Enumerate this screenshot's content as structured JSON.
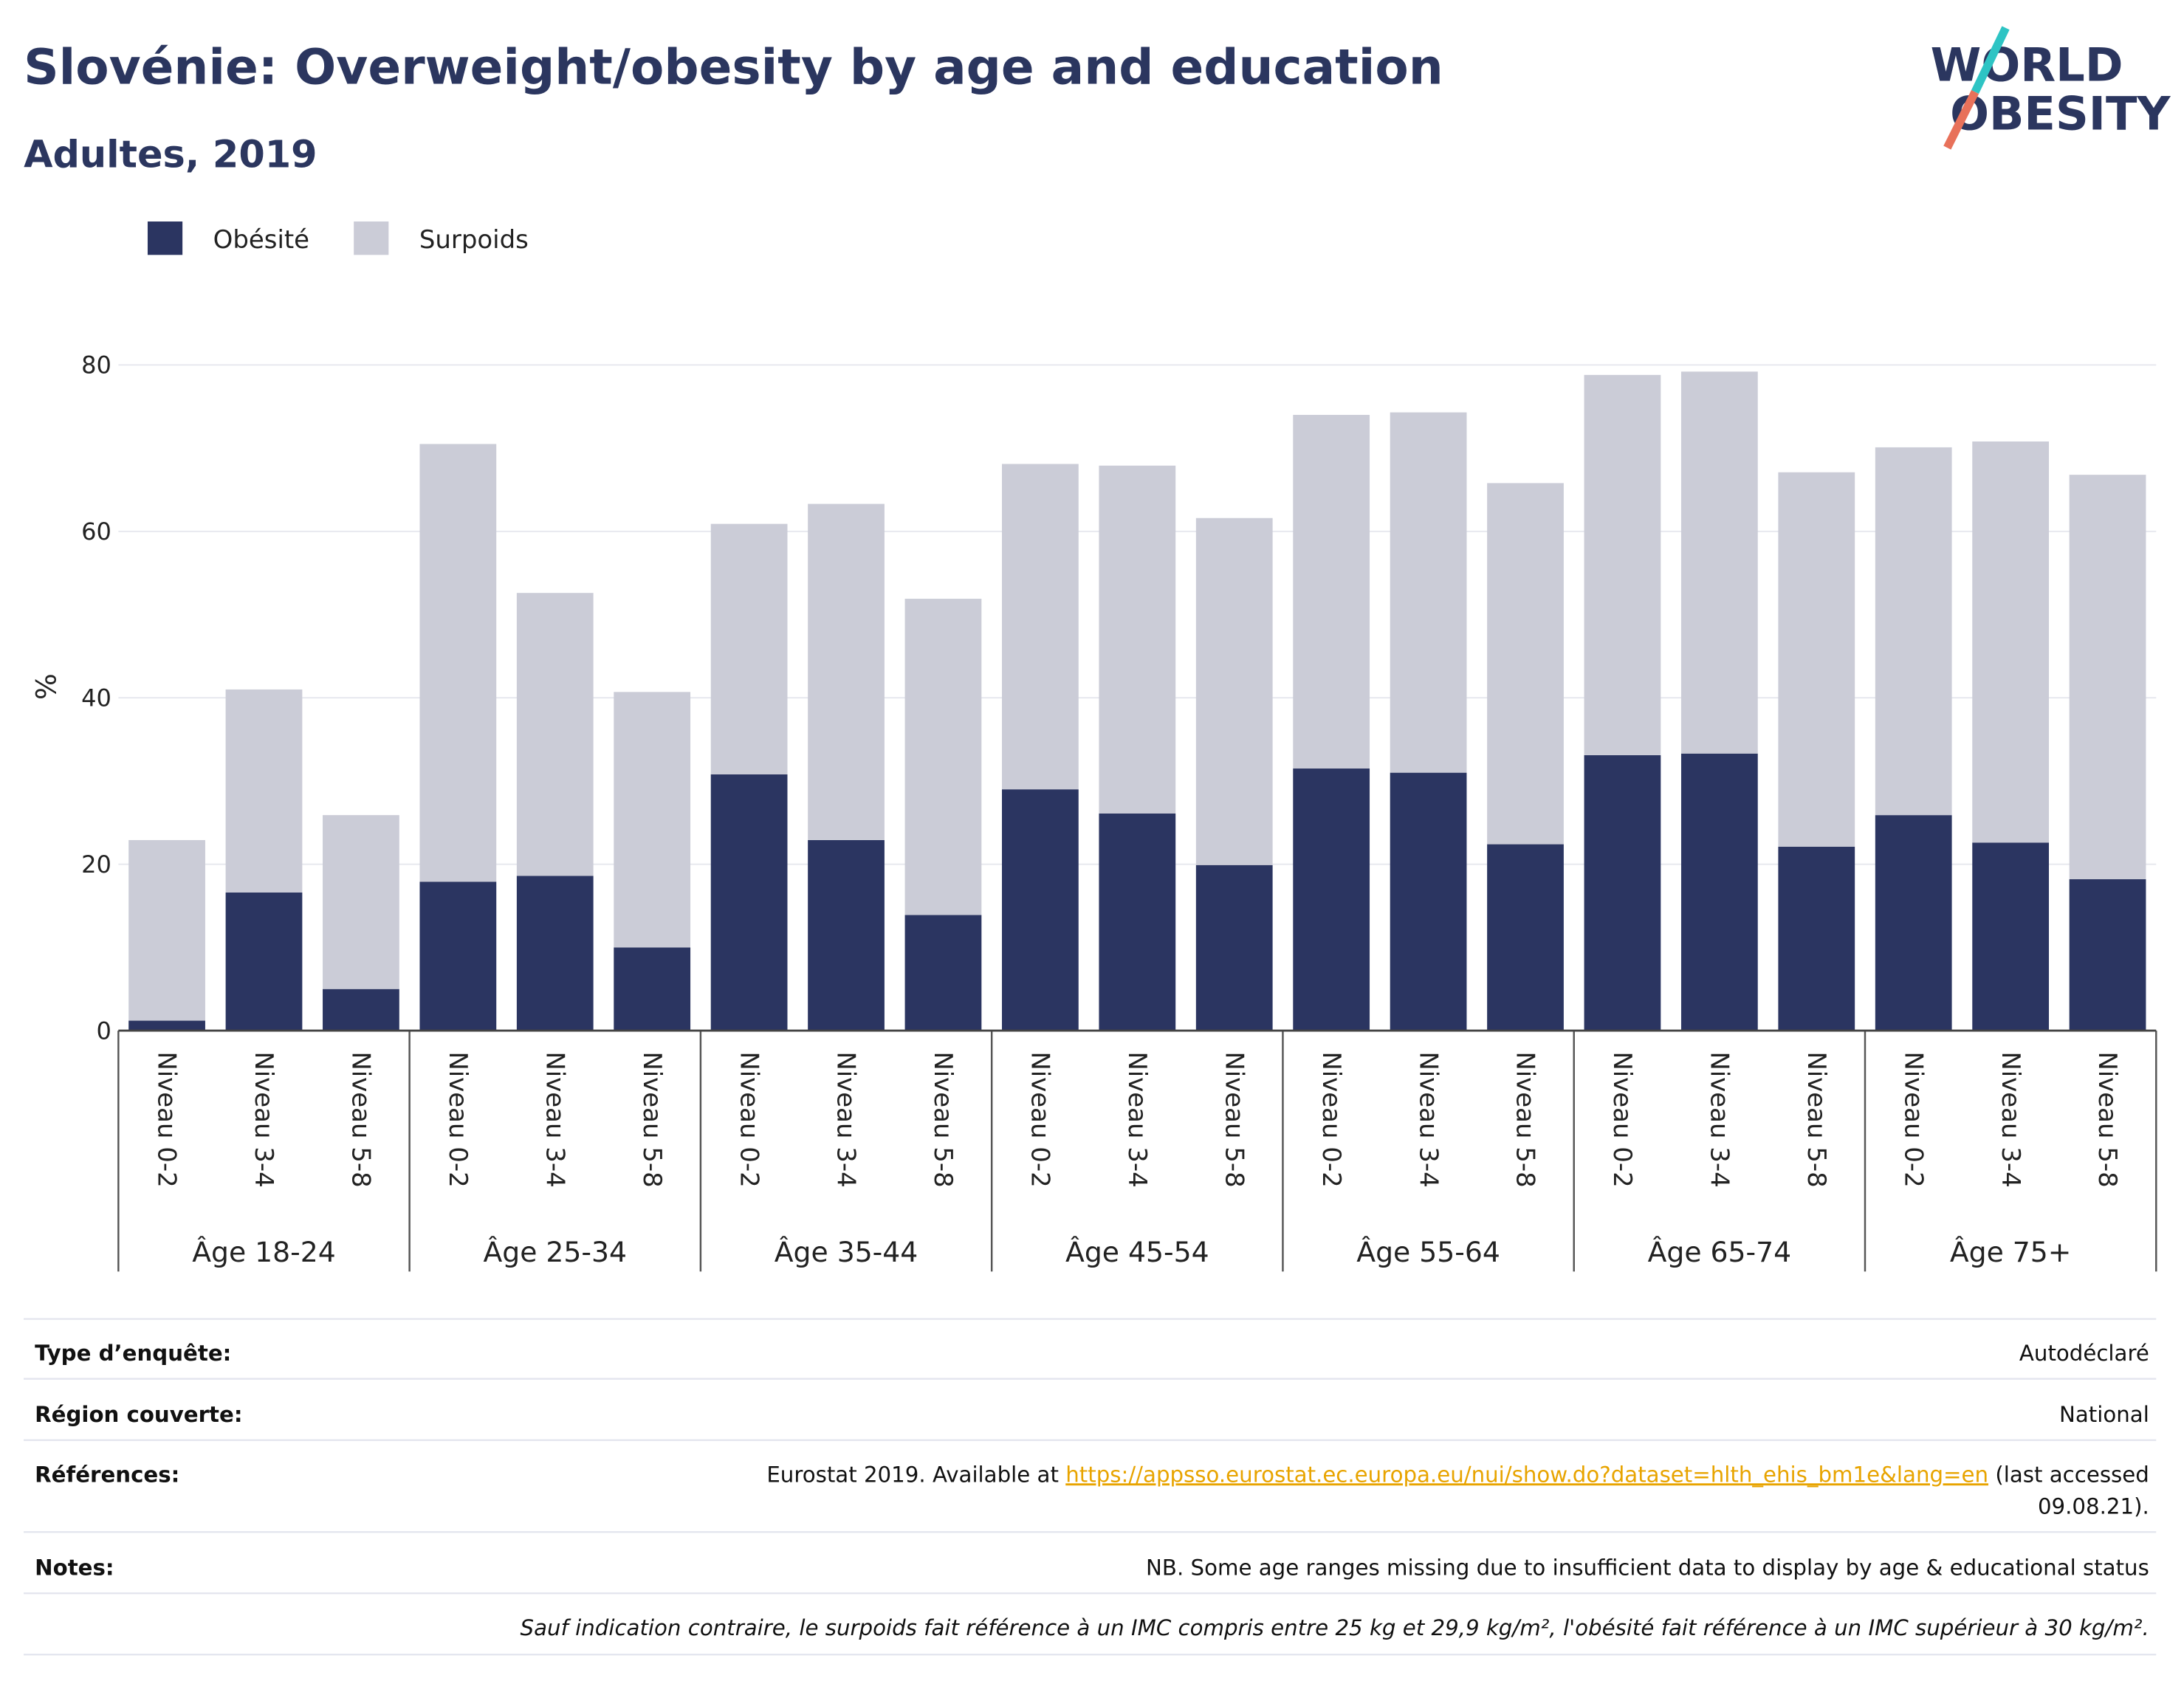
{
  "chart_data": {
    "type": "stacked_bar",
    "title": "Slovénie: Overweight/obesity by age and education",
    "subtitle": "Adultes, 2019",
    "y_label": "%",
    "ylim": [
      0,
      80
    ],
    "yticks": [
      0,
      20,
      40,
      60,
      80
    ],
    "grid": true,
    "legend_position": "top-left",
    "groups": [
      {
        "name": "Âge 18-24",
        "categories": [
          "Niveau 0-2",
          "Niveau 3-4",
          "Niveau 5-8"
        ]
      },
      {
        "name": "Âge 25-34",
        "categories": [
          "Niveau 0-2",
          "Niveau 3-4",
          "Niveau 5-8"
        ]
      },
      {
        "name": "Âge 35-44",
        "categories": [
          "Niveau 0-2",
          "Niveau 3-4",
          "Niveau 5-8"
        ]
      },
      {
        "name": "Âge 45-54",
        "categories": [
          "Niveau 0-2",
          "Niveau 3-4",
          "Niveau 5-8"
        ]
      },
      {
        "name": "Âge 55-64",
        "categories": [
          "Niveau 0-2",
          "Niveau 3-4",
          "Niveau 5-8"
        ]
      },
      {
        "name": "Âge 65-74",
        "categories": [
          "Niveau 0-2",
          "Niveau 3-4",
          "Niveau 5-8"
        ]
      },
      {
        "name": "Âge 75+",
        "categories": [
          "Niveau 0-2",
          "Niveau 3-4",
          "Niveau 5-8"
        ]
      }
    ],
    "series": [
      {
        "name": "Obésité",
        "color": "#2b3561",
        "values": [
          1.2,
          16.6,
          5.0,
          17.9,
          18.6,
          10.0,
          30.8,
          22.9,
          13.9,
          29.0,
          26.1,
          19.9,
          31.5,
          31.0,
          22.4,
          33.1,
          33.3,
          22.1,
          25.9,
          22.6,
          18.2
        ]
      },
      {
        "name": "Surpoids",
        "color": "#cbccd7",
        "values": [
          21.7,
          24.4,
          20.9,
          52.6,
          34.0,
          30.7,
          30.1,
          40.4,
          38.0,
          39.1,
          41.8,
          41.7,
          42.5,
          43.3,
          43.4,
          45.7,
          45.9,
          45.0,
          44.2,
          48.2,
          48.6
        ]
      }
    ]
  },
  "logo": {
    "line1": "WORLD",
    "line2": "OBESITY"
  },
  "table": {
    "rows": [
      {
        "label": "Type d’enquête:",
        "value": "Autodéclaré"
      },
      {
        "label": "Région couverte:",
        "value": "National"
      },
      {
        "label": "Références:",
        "prefix": "Eurostat 2019. Available at ",
        "link": "https://appsso.eurostat.ec.europa.eu/nui/show.do?dataset=hlth_ehis_bm1e&lang=en",
        "suffix": " (last accessed",
        "line2": "09.08.21)."
      },
      {
        "label": "Notes:",
        "value": "NB. Some age ranges missing due to insufficient data to display by age & educational status"
      }
    ],
    "footnote": "Sauf indication contraire, le surpoids fait référence à un IMC compris entre 25 kg et 29,9 kg/m², l'obésité fait référence à un IMC supérieur à 30 kg/m²."
  }
}
